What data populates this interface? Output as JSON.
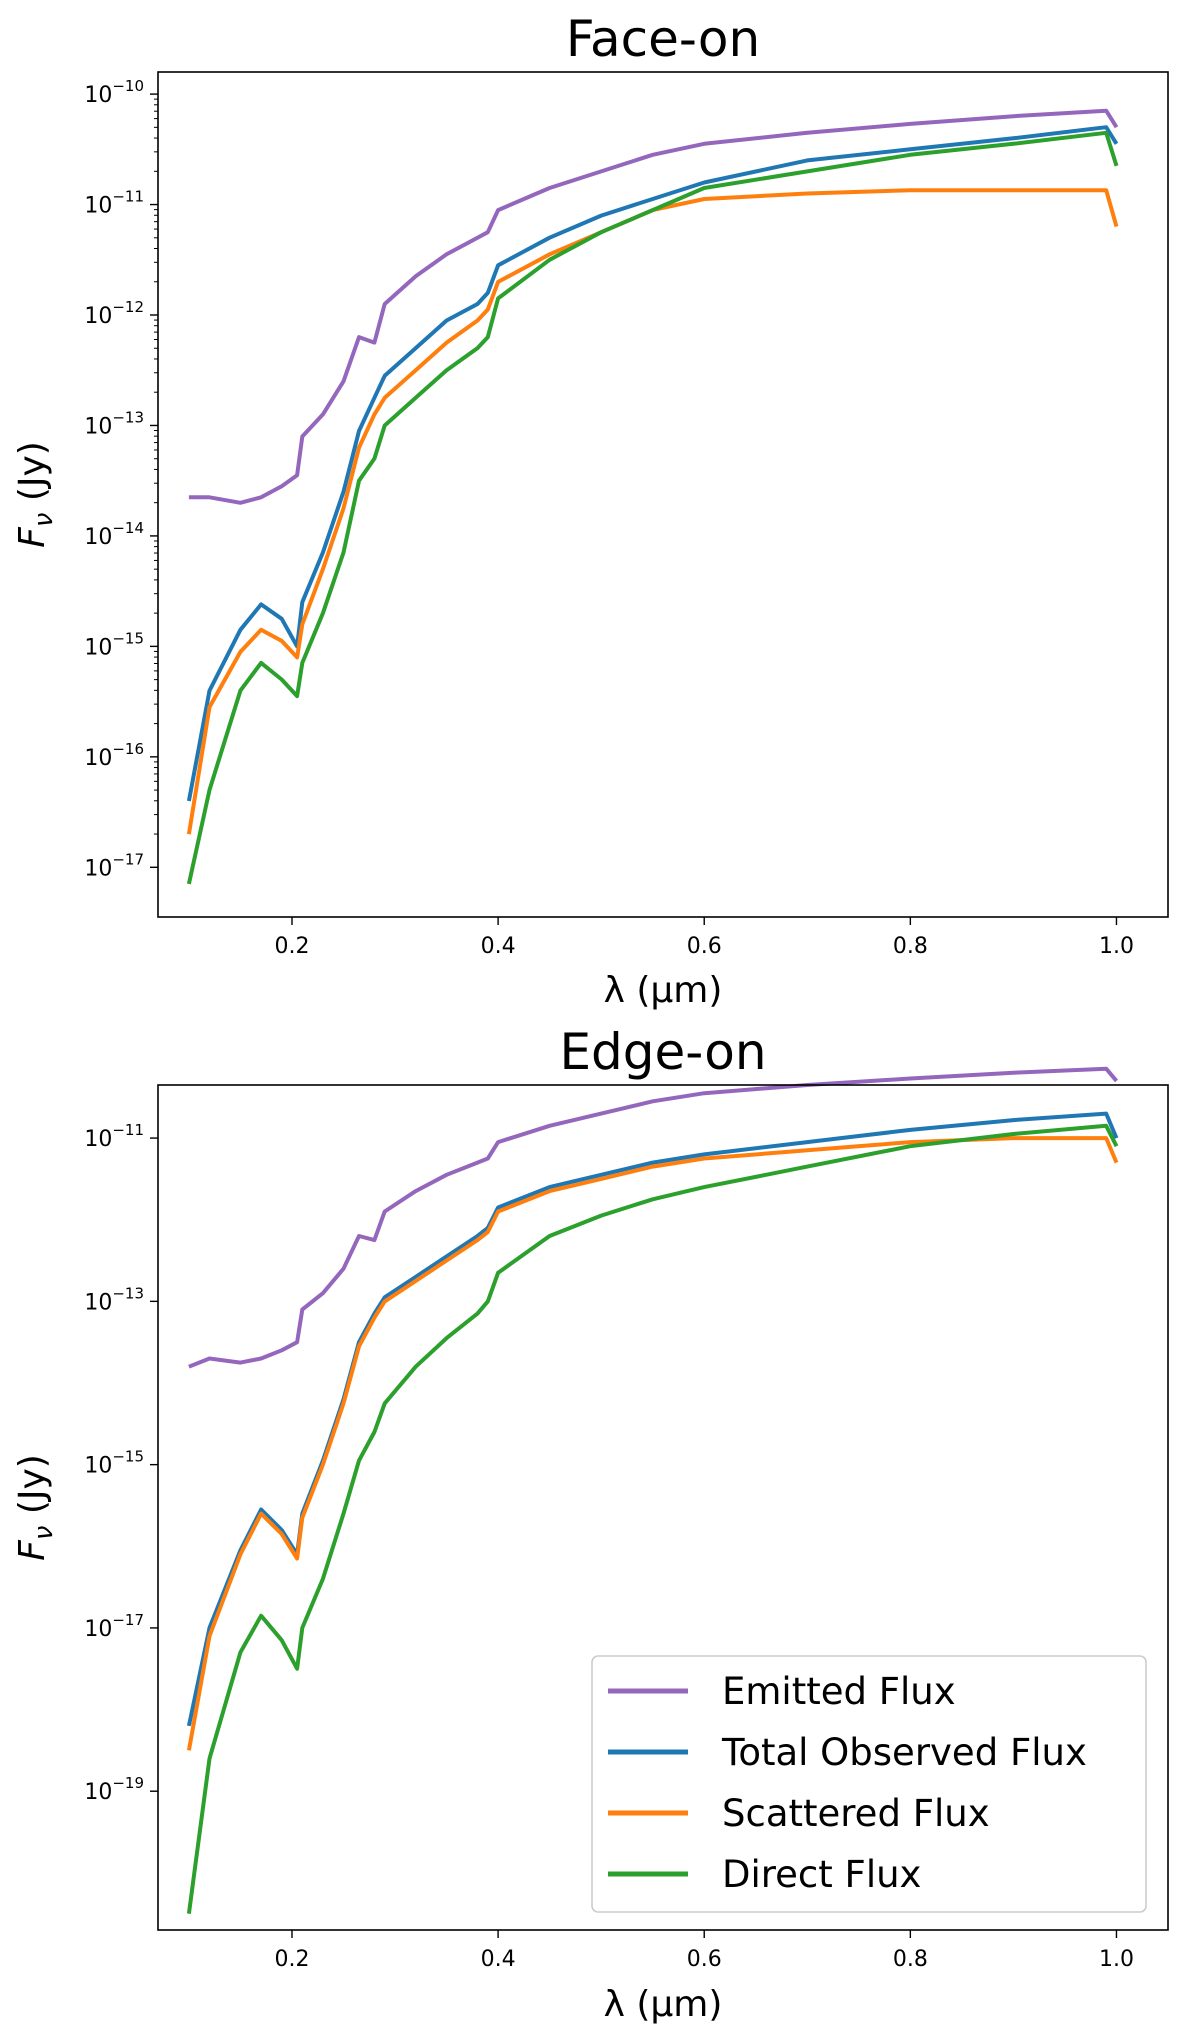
{
  "chart_data": [
    {
      "type": "line",
      "title": "Face-on",
      "xlabel": "λ (μm)",
      "ylabel": "F_ν (Jy)",
      "yscale": "log",
      "xlim": [
        0.07,
        1.05
      ],
      "ylim_exp": [
        -17.45,
        -9.8
      ],
      "xticks": [
        0.2,
        0.4,
        0.6,
        0.8,
        1.0
      ],
      "xtick_labels": [
        "0.2",
        "0.4",
        "0.6",
        "0.8",
        "1.0"
      ],
      "yticks_exp": [
        -17,
        -16,
        -15,
        -14,
        -13,
        -12,
        -11,
        -10
      ],
      "x": [
        0.1,
        0.12,
        0.15,
        0.17,
        0.19,
        0.205,
        0.21,
        0.23,
        0.25,
        0.265,
        0.28,
        0.29,
        0.32,
        0.35,
        0.38,
        0.39,
        0.4,
        0.45,
        0.5,
        0.55,
        0.6,
        0.7,
        0.8,
        0.9,
        0.99,
        1.0
      ],
      "series": [
        {
          "name": "Emitted Flux",
          "color": "#9467bd",
          "log10_values": [
            -13.65,
            -13.65,
            -13.7,
            -13.65,
            -13.55,
            -13.45,
            -13.1,
            -12.9,
            -12.6,
            -12.2,
            -12.25,
            -11.9,
            -11.65,
            -11.45,
            -11.3,
            -11.25,
            -11.05,
            -10.85,
            -10.7,
            -10.55,
            -10.45,
            -10.35,
            -10.27,
            -10.2,
            -10.15,
            -10.3
          ]
        },
        {
          "name": "Total Observed Flux",
          "color": "#1f77b4",
          "log10_values": [
            -16.4,
            -15.4,
            -14.85,
            -14.62,
            -14.75,
            -15.0,
            -14.6,
            -14.15,
            -13.6,
            -13.05,
            -12.75,
            -12.55,
            -12.3,
            -12.05,
            -11.9,
            -11.8,
            -11.55,
            -11.3,
            -11.1,
            -10.95,
            -10.8,
            -10.6,
            -10.5,
            -10.4,
            -10.3,
            -10.45
          ]
        },
        {
          "name": "Scattered Flux",
          "color": "#ff7f0e",
          "log10_values": [
            -16.7,
            -15.55,
            -15.05,
            -14.85,
            -14.95,
            -15.1,
            -14.8,
            -14.3,
            -13.75,
            -13.2,
            -12.9,
            -12.75,
            -12.5,
            -12.25,
            -12.05,
            -11.95,
            -11.7,
            -11.45,
            -11.25,
            -11.05,
            -10.95,
            -10.9,
            -10.87,
            -10.87,
            -10.87,
            -11.2
          ]
        },
        {
          "name": "Direct Flux",
          "color": "#2ca02c",
          "log10_values": [
            -17.15,
            -16.3,
            -15.4,
            -15.15,
            -15.3,
            -15.45,
            -15.15,
            -14.7,
            -14.15,
            -13.5,
            -13.3,
            -13.0,
            -12.75,
            -12.5,
            -12.3,
            -12.2,
            -11.85,
            -11.5,
            -11.25,
            -11.05,
            -10.85,
            -10.7,
            -10.55,
            -10.45,
            -10.35,
            -10.65
          ]
        }
      ]
    },
    {
      "type": "line",
      "title": "Edge-on",
      "xlabel": "λ (μm)",
      "ylabel": "F_ν (Jy)",
      "yscale": "log",
      "xlim": [
        0.07,
        1.05
      ],
      "ylim_exp": [
        -20.7,
        -10.35
      ],
      "xticks": [
        0.2,
        0.4,
        0.6,
        0.8,
        1.0
      ],
      "xtick_labels": [
        "0.2",
        "0.4",
        "0.6",
        "0.8",
        "1.0"
      ],
      "yticks_exp": [
        -19,
        -17,
        -15,
        -13,
        -11
      ],
      "legend_position": "lower-right",
      "x": [
        0.1,
        0.12,
        0.15,
        0.17,
        0.19,
        0.205,
        0.21,
        0.23,
        0.25,
        0.265,
        0.28,
        0.29,
        0.32,
        0.35,
        0.38,
        0.39,
        0.4,
        0.45,
        0.5,
        0.55,
        0.6,
        0.7,
        0.8,
        0.9,
        0.99,
        1.0
      ],
      "series": [
        {
          "name": "Emitted Flux",
          "color": "#9467bd",
          "log10_values": [
            -13.8,
            -13.7,
            -13.75,
            -13.7,
            -13.6,
            -13.5,
            -13.1,
            -12.9,
            -12.6,
            -12.2,
            -12.25,
            -11.9,
            -11.65,
            -11.45,
            -11.3,
            -11.25,
            -11.05,
            -10.85,
            -10.7,
            -10.55,
            -10.45,
            -10.35,
            -10.27,
            -10.2,
            -10.15,
            -10.3
          ]
        },
        {
          "name": "Total Observed Flux",
          "color": "#1f77b4",
          "log10_values": [
            -18.2,
            -17.0,
            -16.05,
            -15.55,
            -15.8,
            -16.1,
            -15.6,
            -14.95,
            -14.2,
            -13.5,
            -13.15,
            -12.95,
            -12.7,
            -12.45,
            -12.2,
            -12.1,
            -11.85,
            -11.6,
            -11.45,
            -11.3,
            -11.2,
            -11.05,
            -10.9,
            -10.78,
            -10.7,
            -11.0
          ]
        },
        {
          "name": "Scattered Flux",
          "color": "#ff7f0e",
          "log10_values": [
            -18.5,
            -17.1,
            -16.1,
            -15.6,
            -15.85,
            -16.15,
            -15.65,
            -15.0,
            -14.25,
            -13.55,
            -13.2,
            -13.0,
            -12.75,
            -12.5,
            -12.25,
            -12.15,
            -11.9,
            -11.65,
            -11.5,
            -11.35,
            -11.25,
            -11.15,
            -11.05,
            -11.0,
            -11.0,
            -11.3
          ]
        },
        {
          "name": "Direct Flux",
          "color": "#2ca02c",
          "log10_values": [
            -20.5,
            -18.6,
            -17.3,
            -16.85,
            -17.15,
            -17.5,
            -17.0,
            -16.4,
            -15.6,
            -14.95,
            -14.6,
            -14.25,
            -13.8,
            -13.45,
            -13.15,
            -13.0,
            -12.65,
            -12.2,
            -11.95,
            -11.75,
            -11.6,
            -11.35,
            -11.1,
            -10.95,
            -10.85,
            -11.1
          ]
        }
      ]
    }
  ]
}
